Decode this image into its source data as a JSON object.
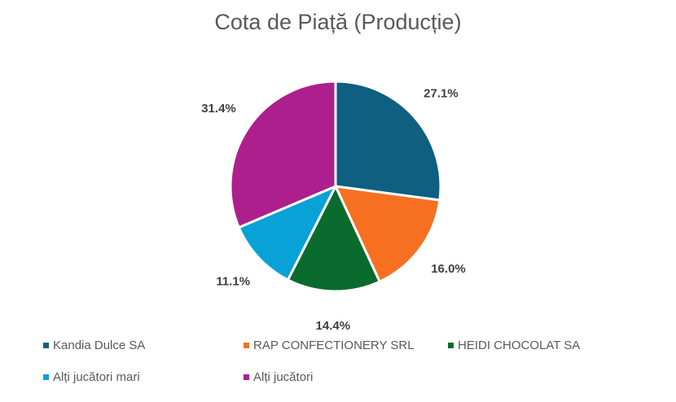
{
  "chart_data": {
    "type": "pie",
    "title": "Cota de Piață (Producție)",
    "categories": [
      "Kandia Dulce SA",
      "RAP CONFECTIONERY SRL",
      "HEIDI CHOCOLAT SA",
      "Alți jucători mari",
      "Alți jucători"
    ],
    "values": [
      27.1,
      16.0,
      14.4,
      11.1,
      31.4
    ],
    "labels": [
      "27.1%",
      "16.0%",
      "14.4%",
      "11.1%",
      "31.4%"
    ],
    "colors": [
      "#0f5f80",
      "#f77022",
      "#0a6b2e",
      "#08a2d6",
      "#ad1f8c"
    ],
    "legend_position": "bottom"
  }
}
